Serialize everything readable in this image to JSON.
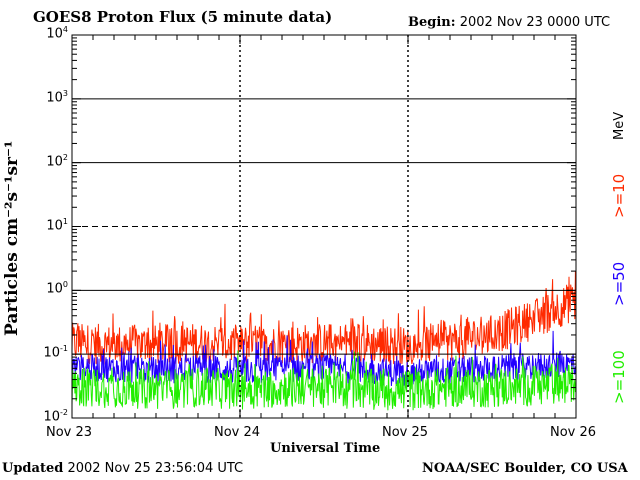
{
  "header": {
    "title": "GOES8 Proton Flux (5 minute data)",
    "begin_label": "Begin:",
    "begin_value": "2002 Nov 23 0000 UTC"
  },
  "footer": {
    "updated_label": "Updated",
    "updated_value": "2002 Nov 25 23:56:04 UTC",
    "credit": "NOAA/SEC Boulder, CO USA"
  },
  "legend": {
    "unit": "MeV",
    "items": [
      {
        "label": ">=10",
        "color": "#ff2a00"
      },
      {
        "label": ">=50",
        "color": "#2200ff"
      },
      {
        "label": ">=100",
        "color": "#22ee00"
      }
    ]
  },
  "chart_data": {
    "type": "line",
    "ylabel": "Particles cm⁻²s⁻¹sr⁻¹",
    "xlabel": "Universal Time",
    "yscale": "log",
    "ylim": [
      0.01,
      10000
    ],
    "y_ticks": [
      {
        "base": "10",
        "exp": "4"
      },
      {
        "base": "10",
        "exp": "3"
      },
      {
        "base": "10",
        "exp": "2"
      },
      {
        "base": "10",
        "exp": "1"
      },
      {
        "base": "10",
        "exp": "0"
      },
      {
        "base": "10",
        "exp": "-1"
      },
      {
        "base": "10",
        "exp": "-2"
      }
    ],
    "x_ticks": [
      "Nov 23",
      "Nov 24",
      "Nov 25",
      "Nov 26"
    ],
    "xlim": [
      "2002-11-23T00:00Z",
      "2002-11-26T00:00Z"
    ],
    "threshold": 10,
    "series": [
      {
        "name": ">=10",
        "color": "#ff2a00",
        "x": [
          "2002-11-23T00:00Z",
          "2002-11-23T06:00Z",
          "2002-11-23T12:00Z",
          "2002-11-23T18:00Z",
          "2002-11-24T00:00Z",
          "2002-11-24T06:00Z",
          "2002-11-24T12:00Z",
          "2002-11-24T18:00Z",
          "2002-11-25T00:00Z",
          "2002-11-25T06:00Z",
          "2002-11-25T12:00Z",
          "2002-11-25T18:00Z",
          "2002-11-25T21:00Z",
          "2002-11-26T00:00Z"
        ],
        "values": [
          0.15,
          0.14,
          0.14,
          0.15,
          0.14,
          0.14,
          0.15,
          0.15,
          0.13,
          0.16,
          0.2,
          0.35,
          0.5,
          0.7
        ]
      },
      {
        "name": ">=50",
        "color": "#2200ff",
        "x": [
          "2002-11-23T00:00Z",
          "2002-11-23T06:00Z",
          "2002-11-23T12:00Z",
          "2002-11-23T18:00Z",
          "2002-11-24T00:00Z",
          "2002-11-24T06:00Z",
          "2002-11-24T12:00Z",
          "2002-11-24T18:00Z",
          "2002-11-25T00:00Z",
          "2002-11-25T06:00Z",
          "2002-11-25T12:00Z",
          "2002-11-25T18:00Z",
          "2002-11-26T00:00Z"
        ],
        "values": [
          0.06,
          0.06,
          0.055,
          0.06,
          0.055,
          0.06,
          0.06,
          0.055,
          0.05,
          0.055,
          0.06,
          0.065,
          0.07
        ]
      },
      {
        "name": ">=100",
        "color": "#22ee00",
        "x": [
          "2002-11-23T00:00Z",
          "2002-11-23T06:00Z",
          "2002-11-23T12:00Z",
          "2002-11-23T18:00Z",
          "2002-11-24T00:00Z",
          "2002-11-24T06:00Z",
          "2002-11-24T12:00Z",
          "2002-11-24T18:00Z",
          "2002-11-25T00:00Z",
          "2002-11-25T06:00Z",
          "2002-11-25T12:00Z",
          "2002-11-25T18:00Z",
          "2002-11-26T00:00Z"
        ],
        "values": [
          0.03,
          0.03,
          0.028,
          0.03,
          0.028,
          0.03,
          0.03,
          0.028,
          0.027,
          0.03,
          0.03,
          0.032,
          0.033
        ]
      }
    ]
  }
}
